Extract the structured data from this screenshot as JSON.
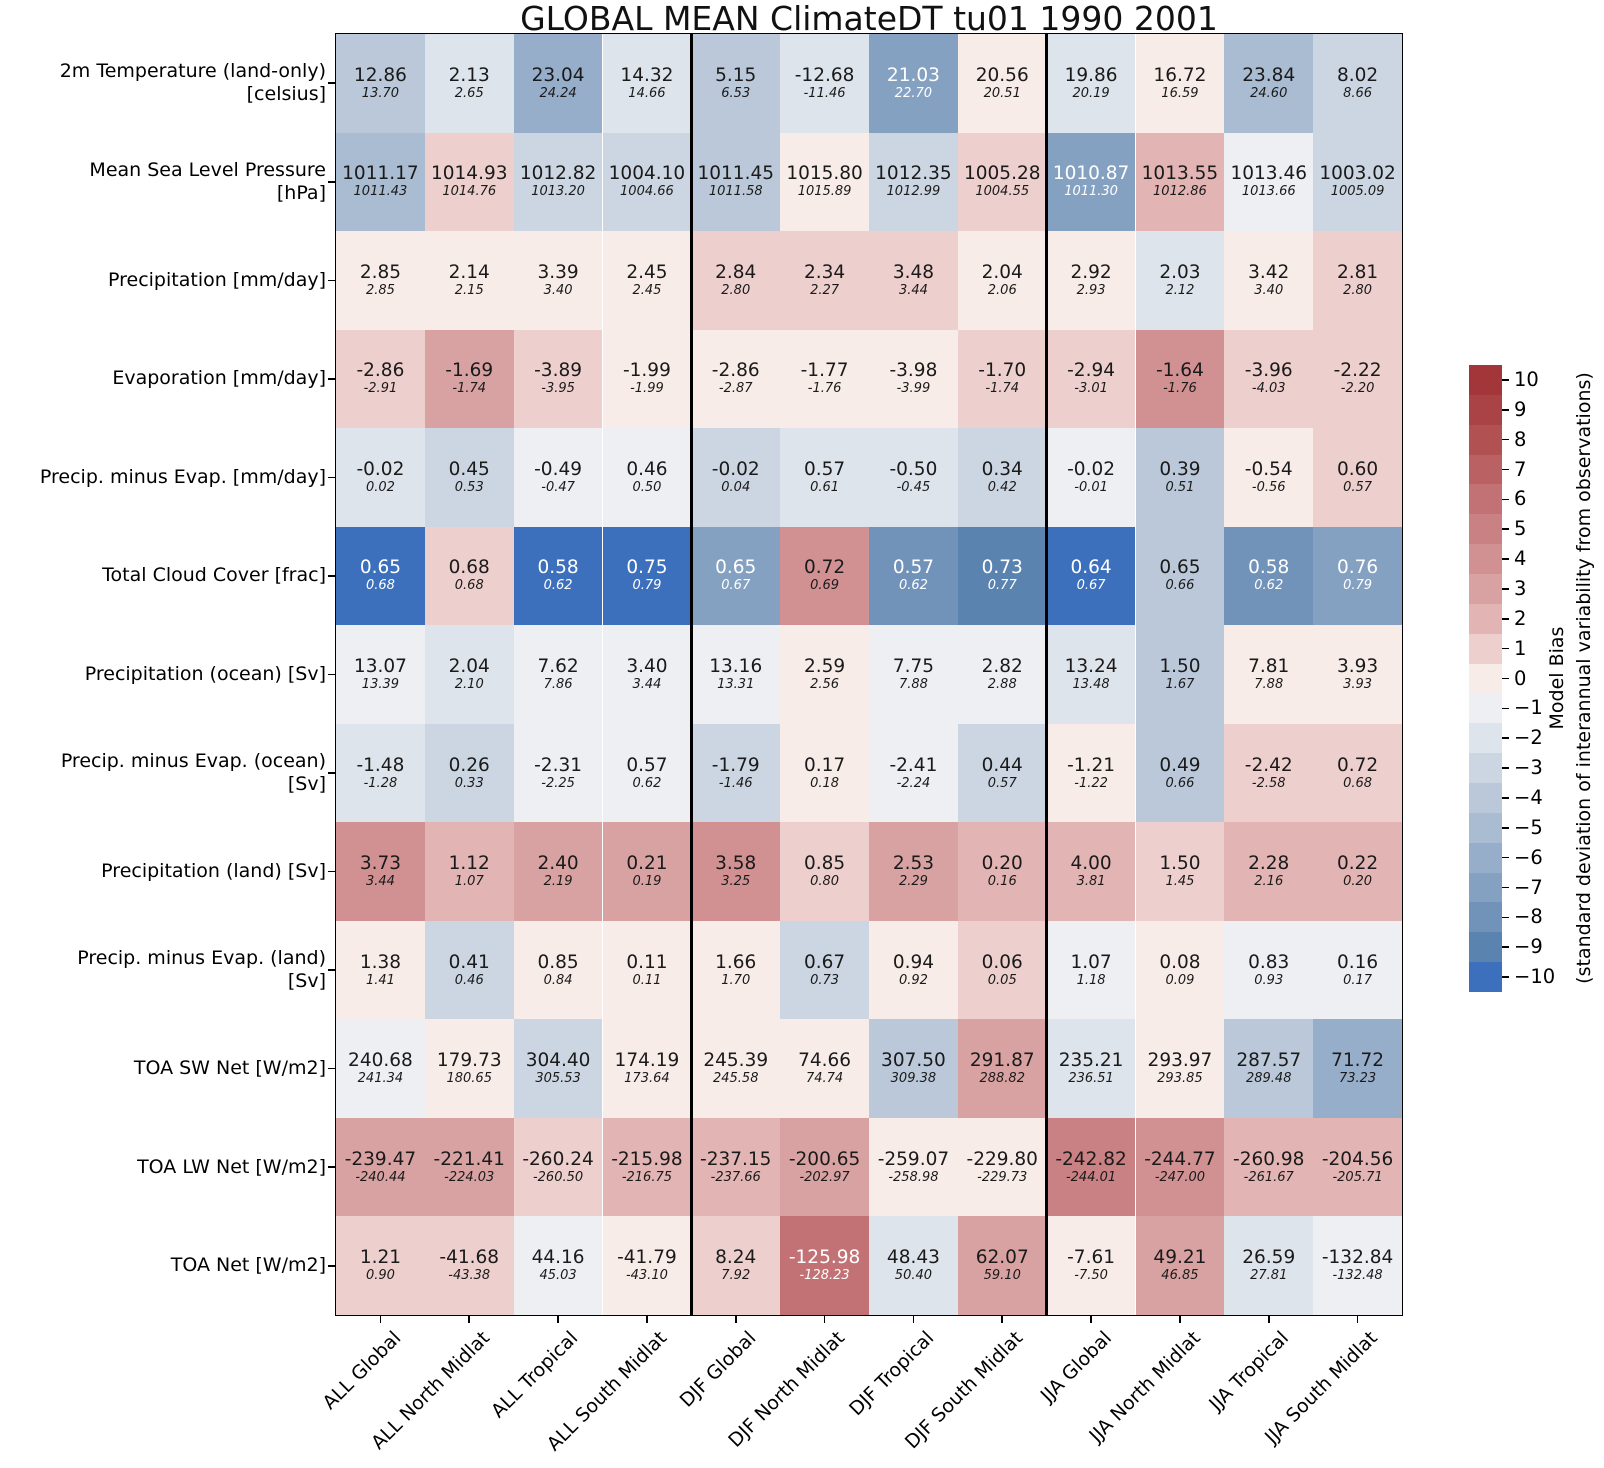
{
  "chart_data": {
    "type": "heatmap",
    "title": "GLOBAL MEAN ClimateDT tu01 1990 2001",
    "cell_fields": [
      "model_value",
      "observation_value",
      "bias_level",
      "white_text"
    ],
    "columns": [
      "ALL Global",
      "ALL North Midlat",
      "ALL Tropical",
      "ALL South Midlat",
      "DJF Global",
      "DJF North Midlat",
      "DJF Tropical",
      "DJF South Midlat",
      "JJA Global",
      "JJA North Midlat",
      "JJA Tropical",
      "JJA South Midlat"
    ],
    "column_groups": [
      [
        "ALL",
        4
      ],
      [
        "DJF",
        4
      ],
      [
        "JJA",
        4
      ]
    ],
    "rows": [
      {
        "label": [
          "2m Temperature (land-only)",
          "[celsius]"
        ],
        "cells": [
          [
            "12.86",
            "13.70",
            -4,
            0
          ],
          [
            "2.13",
            "2.65",
            -2,
            0
          ],
          [
            "23.04",
            "24.24",
            -6,
            0
          ],
          [
            "14.32",
            "14.66",
            -2,
            0
          ],
          [
            "5.15",
            "6.53",
            -4,
            0
          ],
          [
            "-12.68",
            "-11.46",
            -2,
            0
          ],
          [
            "21.03",
            "22.70",
            -7,
            1
          ],
          [
            "20.56",
            "20.51",
            0,
            0
          ],
          [
            "19.86",
            "20.19",
            -2,
            0
          ],
          [
            "16.72",
            "16.59",
            0,
            0
          ],
          [
            "23.84",
            "24.60",
            -5,
            0
          ],
          [
            "8.02",
            "8.66",
            -3,
            0
          ]
        ]
      },
      {
        "label": [
          "Mean Sea Level Pressure",
          "[hPa]"
        ],
        "cells": [
          [
            "1011.17",
            "1011.43",
            -5,
            0
          ],
          [
            "1014.93",
            "1014.76",
            1,
            0
          ],
          [
            "1012.82",
            "1013.20",
            -3,
            0
          ],
          [
            "1004.10",
            "1004.66",
            -3,
            0
          ],
          [
            "1011.45",
            "1011.58",
            -4,
            0
          ],
          [
            "1015.80",
            "1015.89",
            0,
            0
          ],
          [
            "1012.35",
            "1012.99",
            -3,
            0
          ],
          [
            "1005.28",
            "1004.55",
            1,
            0
          ],
          [
            "1010.87",
            "1011.30",
            -7,
            1
          ],
          [
            "1013.55",
            "1012.86",
            2,
            0
          ],
          [
            "1013.46",
            "1013.66",
            -1,
            0
          ],
          [
            "1003.02",
            "1005.09",
            -3,
            0
          ]
        ]
      },
      {
        "label": [
          "Precipitation [mm/day]"
        ],
        "cells": [
          [
            "2.85",
            "2.85",
            0,
            0
          ],
          [
            "2.14",
            "2.15",
            0,
            0
          ],
          [
            "3.39",
            "3.40",
            0,
            0
          ],
          [
            "2.45",
            "2.45",
            0,
            0
          ],
          [
            "2.84",
            "2.80",
            1,
            0
          ],
          [
            "2.34",
            "2.27",
            1,
            0
          ],
          [
            "3.48",
            "3.44",
            1,
            0
          ],
          [
            "2.04",
            "2.06",
            0,
            0
          ],
          [
            "2.92",
            "2.93",
            0,
            0
          ],
          [
            "2.03",
            "2.12",
            -2,
            0
          ],
          [
            "3.42",
            "3.40",
            0,
            0
          ],
          [
            "2.81",
            "2.80",
            1,
            0
          ]
        ]
      },
      {
        "label": [
          "Evaporation [mm/day]"
        ],
        "cells": [
          [
            "-2.86",
            "-2.91",
            1,
            0
          ],
          [
            "-1.69",
            "-1.74",
            3,
            0
          ],
          [
            "-3.89",
            "-3.95",
            1,
            0
          ],
          [
            "-1.99",
            "-1.99",
            0,
            0
          ],
          [
            "-2.86",
            "-2.87",
            0,
            0
          ],
          [
            "-1.77",
            "-1.76",
            0,
            0
          ],
          [
            "-3.98",
            "-3.99",
            0,
            0
          ],
          [
            "-1.70",
            "-1.74",
            1,
            0
          ],
          [
            "-2.94",
            "-3.01",
            1,
            0
          ],
          [
            "-1.64",
            "-1.76",
            4,
            0
          ],
          [
            "-3.96",
            "-4.03",
            1,
            0
          ],
          [
            "-2.22",
            "-2.20",
            1,
            0
          ]
        ]
      },
      {
        "label": [
          "Precip. minus Evap. [mm/day]"
        ],
        "cells": [
          [
            "-0.02",
            "0.02",
            -2,
            0
          ],
          [
            "0.45",
            "0.53",
            -3,
            0
          ],
          [
            "-0.49",
            "-0.47",
            -1,
            0
          ],
          [
            "0.46",
            "0.50",
            -1,
            0
          ],
          [
            "-0.02",
            "0.04",
            -3,
            0
          ],
          [
            "0.57",
            "0.61",
            -2,
            0
          ],
          [
            "-0.50",
            "-0.45",
            -2,
            0
          ],
          [
            "0.34",
            "0.42",
            -3,
            0
          ],
          [
            "-0.02",
            "-0.01",
            -1,
            0
          ],
          [
            "0.39",
            "0.51",
            -4,
            0
          ],
          [
            "-0.54",
            "-0.56",
            0,
            0
          ],
          [
            "0.60",
            "0.57",
            1,
            0
          ]
        ]
      },
      {
        "label": [
          "Total Cloud Cover [frac]"
        ],
        "cells": [
          [
            "0.65",
            "0.68",
            -10,
            1
          ],
          [
            "0.68",
            "0.68",
            1,
            0
          ],
          [
            "0.58",
            "0.62",
            -10,
            1
          ],
          [
            "0.75",
            "0.79",
            -10,
            1
          ],
          [
            "0.65",
            "0.67",
            -7,
            1
          ],
          [
            "0.72",
            "0.69",
            4,
            0
          ],
          [
            "0.57",
            "0.62",
            -8,
            1
          ],
          [
            "0.73",
            "0.77",
            -9,
            1
          ],
          [
            "0.64",
            "0.67",
            -10,
            1
          ],
          [
            "0.65",
            "0.66",
            -4,
            0
          ],
          [
            "0.58",
            "0.62",
            -8,
            1
          ],
          [
            "0.76",
            "0.79",
            -7,
            1
          ]
        ]
      },
      {
        "label": [
          "Precipitation (ocean) [Sv]"
        ],
        "cells": [
          [
            "13.07",
            "13.39",
            -1,
            0
          ],
          [
            "2.04",
            "2.10",
            -2,
            0
          ],
          [
            "7.62",
            "7.86",
            -1,
            0
          ],
          [
            "3.40",
            "3.44",
            -1,
            0
          ],
          [
            "13.16",
            "13.31",
            -1,
            0
          ],
          [
            "2.59",
            "2.56",
            0,
            0
          ],
          [
            "7.75",
            "7.88",
            -1,
            0
          ],
          [
            "2.82",
            "2.88",
            -1,
            0
          ],
          [
            "13.24",
            "13.48",
            -2,
            0
          ],
          [
            "1.50",
            "1.67",
            -4,
            0
          ],
          [
            "7.81",
            "7.88",
            0,
            0
          ],
          [
            "3.93",
            "3.93",
            0,
            0
          ]
        ]
      },
      {
        "label": [
          "Precip. minus Evap. (ocean)",
          "[Sv]"
        ],
        "cells": [
          [
            "-1.48",
            "-1.28",
            -2,
            0
          ],
          [
            "0.26",
            "0.33",
            -3,
            0
          ],
          [
            "-2.31",
            "-2.25",
            -1,
            0
          ],
          [
            "0.57",
            "0.62",
            -1,
            0
          ],
          [
            "-1.79",
            "-1.46",
            -3,
            0
          ],
          [
            "0.17",
            "0.18",
            0,
            0
          ],
          [
            "-2.41",
            "-2.24",
            -1,
            0
          ],
          [
            "0.44",
            "0.57",
            -3,
            0
          ],
          [
            "-1.21",
            "-1.22",
            0,
            0
          ],
          [
            "0.49",
            "0.66",
            -4,
            0
          ],
          [
            "-2.42",
            "-2.58",
            1,
            0
          ],
          [
            "0.72",
            "0.68",
            1,
            0
          ]
        ]
      },
      {
        "label": [
          "Precipitation (land) [Sv]"
        ],
        "cells": [
          [
            "3.73",
            "3.44",
            4,
            0
          ],
          [
            "1.12",
            "1.07",
            2,
            0
          ],
          [
            "2.40",
            "2.19",
            3,
            0
          ],
          [
            "0.21",
            "0.19",
            3,
            0
          ],
          [
            "3.58",
            "3.25",
            4,
            0
          ],
          [
            "0.85",
            "0.80",
            1,
            0
          ],
          [
            "2.53",
            "2.29",
            3,
            0
          ],
          [
            "0.20",
            "0.16",
            2,
            0
          ],
          [
            "4.00",
            "3.81",
            2,
            0
          ],
          [
            "1.50",
            "1.45",
            1,
            0
          ],
          [
            "2.28",
            "2.16",
            2,
            0
          ],
          [
            "0.22",
            "0.20",
            2,
            0
          ]
        ]
      },
      {
        "label": [
          "Precip. minus Evap. (land)",
          "[Sv]"
        ],
        "cells": [
          [
            "1.38",
            "1.41",
            0,
            0
          ],
          [
            "0.41",
            "0.46",
            -3,
            0
          ],
          [
            "0.85",
            "0.84",
            0,
            0
          ],
          [
            "0.11",
            "0.11",
            0,
            0
          ],
          [
            "1.66",
            "1.70",
            0,
            0
          ],
          [
            "0.67",
            "0.73",
            -3,
            0
          ],
          [
            "0.94",
            "0.92",
            0,
            0
          ],
          [
            "0.06",
            "0.05",
            1,
            0
          ],
          [
            "1.07",
            "1.18",
            -1,
            0
          ],
          [
            "0.08",
            "0.09",
            0,
            0
          ],
          [
            "0.83",
            "0.93",
            -1,
            0
          ],
          [
            "0.16",
            "0.17",
            -1,
            0
          ]
        ]
      },
      {
        "label": [
          "TOA SW Net [W/m2]"
        ],
        "cells": [
          [
            "240.68",
            "241.34",
            -1,
            0
          ],
          [
            "179.73",
            "180.65",
            0,
            0
          ],
          [
            "304.40",
            "305.53",
            -3,
            0
          ],
          [
            "174.19",
            "173.64",
            0,
            0
          ],
          [
            "245.39",
            "245.58",
            0,
            0
          ],
          [
            "74.66",
            "74.74",
            0,
            0
          ],
          [
            "307.50",
            "309.38",
            -4,
            0
          ],
          [
            "291.87",
            "288.82",
            3,
            0
          ],
          [
            "235.21",
            "236.51",
            -2,
            0
          ],
          [
            "293.97",
            "293.85",
            0,
            0
          ],
          [
            "287.57",
            "289.48",
            -4,
            0
          ],
          [
            "71.72",
            "73.23",
            -6,
            0
          ]
        ]
      },
      {
        "label": [
          "TOA LW Net [W/m2]"
        ],
        "cells": [
          [
            "-239.47",
            "-240.44",
            3,
            0
          ],
          [
            "-221.41",
            "-224.03",
            3,
            0
          ],
          [
            "-260.24",
            "-260.50",
            1,
            0
          ],
          [
            "-215.98",
            "-216.75",
            2,
            0
          ],
          [
            "-237.15",
            "-237.66",
            2,
            0
          ],
          [
            "-200.65",
            "-202.97",
            3,
            0
          ],
          [
            "-259.07",
            "-258.98",
            0,
            0
          ],
          [
            "-229.80",
            "-229.73",
            0,
            0
          ],
          [
            "-242.82",
            "-244.01",
            5,
            0
          ],
          [
            "-244.77",
            "-247.00",
            4,
            0
          ],
          [
            "-260.98",
            "-261.67",
            2,
            0
          ],
          [
            "-204.56",
            "-205.71",
            2,
            0
          ]
        ]
      },
      {
        "label": [
          "TOA Net [W/m2]"
        ],
        "cells": [
          [
            "1.21",
            "0.90",
            1,
            0
          ],
          [
            "-41.68",
            "-43.38",
            1,
            0
          ],
          [
            "44.16",
            "45.03",
            -1,
            0
          ],
          [
            "-41.79",
            "-43.10",
            0,
            0
          ],
          [
            "8.24",
            "7.92",
            1,
            0
          ],
          [
            "-125.98",
            "-128.23",
            6,
            1
          ],
          [
            "48.43",
            "50.40",
            -2,
            0
          ],
          [
            "62.07",
            "59.10",
            3,
            0
          ],
          [
            "-7.61",
            "-7.50",
            0,
            0
          ],
          [
            "49.21",
            "46.85",
            3,
            0
          ],
          [
            "26.59",
            "27.81",
            -2,
            0
          ],
          [
            "-132.84",
            "-132.48",
            -1,
            0
          ]
        ]
      }
    ],
    "colorbar": {
      "label_line1": "Model Bias",
      "label_line2": "(standard deviation of interannual variability from observations)",
      "ticks": [
        10,
        9,
        8,
        7,
        6,
        5,
        4,
        3,
        2,
        1,
        0,
        -1,
        -2,
        -3,
        -4,
        -5,
        -6,
        -7,
        -8,
        -9,
        -10
      ],
      "range": [
        -10,
        10
      ],
      "palette_from_plus10_to_minus10": [
        "#a23639",
        "#a94345",
        "#b15152",
        "#ba6263",
        "#c27274",
        "#c98183",
        "#d19192",
        "#d9a2a2",
        "#e2b4b3",
        "#edcfcd",
        "#f8ece9",
        "#edeff3",
        "#dee4eb",
        "#ccd6e2",
        "#bac8d9",
        "#a9bcd2",
        "#97aeca",
        "#84a1c1",
        "#7193b9",
        "#5b83b0",
        "#3c70bd"
      ]
    },
    "text_colors": {
      "dark": "#1a1a1a",
      "white": "#ffffff"
    }
  }
}
